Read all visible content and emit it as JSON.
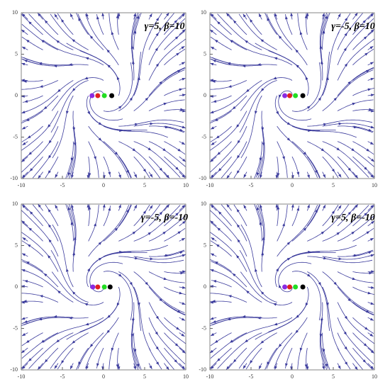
{
  "chart_data": [
    {
      "type": "scatter",
      "annotation": "γ=5, β=10",
      "xlim": [
        -10,
        10
      ],
      "ylim": [
        -10,
        10
      ],
      "xticks": [
        -10,
        -5,
        0,
        5,
        10
      ],
      "yticks": [
        -10,
        -5,
        0,
        5,
        10
      ],
      "x": [
        -1.4,
        -0.7,
        0.1,
        1
      ],
      "values": [
        0,
        0,
        0,
        0
      ],
      "colors": [
        "#8a2be2",
        "#e02020",
        "#22dd22",
        "#000000"
      ],
      "swirl": 1
    },
    {
      "type": "scatter",
      "annotation": "γ=-5, β=10",
      "xlim": [
        -10,
        10
      ],
      "ylim": [
        -10,
        10
      ],
      "xticks": [
        -10,
        -5,
        0,
        5,
        10
      ],
      "yticks": [
        -10,
        -5,
        0,
        5,
        10
      ],
      "x": [
        -0.9,
        -0.3,
        0.4,
        1.3
      ],
      "values": [
        0,
        0,
        0,
        0
      ],
      "colors": [
        "#8a2be2",
        "#e02020",
        "#22dd22",
        "#000000"
      ],
      "swirl": 1
    },
    {
      "type": "scatter",
      "annotation": "γ=-5, β=-10",
      "xlim": [
        -10,
        10
      ],
      "ylim": [
        -10,
        10
      ],
      "xticks": [
        -10,
        -5,
        0,
        5,
        10
      ],
      "yticks": [
        -10,
        -5,
        0,
        5,
        10
      ],
      "x": [
        -1.3,
        -0.7,
        0.1,
        0.8
      ],
      "values": [
        0,
        0,
        0,
        0
      ],
      "colors": [
        "#8a2be2",
        "#e02020",
        "#22dd22",
        "#000000"
      ],
      "swirl": -1
    },
    {
      "type": "scatter",
      "annotation": "γ=5, β=-10",
      "xlim": [
        -10,
        10
      ],
      "ylim": [
        -10,
        10
      ],
      "xticks": [
        -10,
        -5,
        0,
        5,
        10
      ],
      "yticks": [
        -10,
        -5,
        0,
        5,
        10
      ],
      "x": [
        -0.9,
        -0.3,
        0.4,
        1.3
      ],
      "values": [
        0,
        0,
        0,
        0
      ],
      "colors": [
        "#8a2be2",
        "#e02020",
        "#22dd22",
        "#000000"
      ],
      "swirl": -1
    }
  ]
}
